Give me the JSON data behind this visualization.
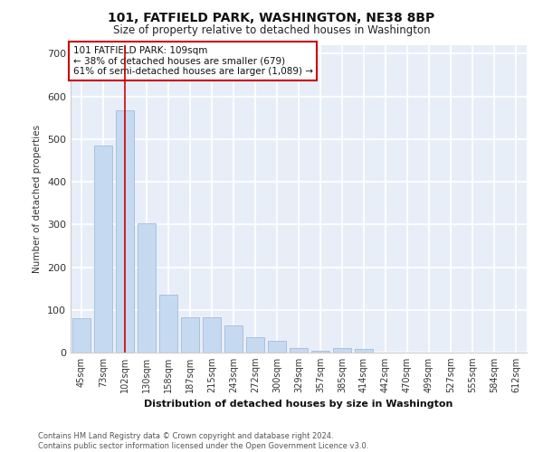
{
  "title_line1": "101, FATFIELD PARK, WASHINGTON, NE38 8BP",
  "title_line2": "Size of property relative to detached houses in Washington",
  "xlabel": "Distribution of detached houses by size in Washington",
  "ylabel": "Number of detached properties",
  "footnote": "Contains HM Land Registry data © Crown copyright and database right 2024.\nContains public sector information licensed under the Open Government Licence v3.0.",
  "bar_color": "#c5d9f1",
  "bar_edge_color": "#9ab3d5",
  "background_color": "#e8eef8",
  "grid_color": "#ffffff",
  "annotation_text": "101 FATFIELD PARK: 109sqm\n← 38% of detached houses are smaller (679)\n61% of semi-detached houses are larger (1,089) →",
  "vline_color": "#cc0000",
  "vline_index": 2,
  "categories": [
    "45sqm",
    "73sqm",
    "102sqm",
    "130sqm",
    "158sqm",
    "187sqm",
    "215sqm",
    "243sqm",
    "272sqm",
    "300sqm",
    "329sqm",
    "357sqm",
    "385sqm",
    "414sqm",
    "442sqm",
    "470sqm",
    "499sqm",
    "527sqm",
    "555sqm",
    "584sqm",
    "612sqm"
  ],
  "values": [
    80,
    484,
    567,
    302,
    135,
    83,
    83,
    63,
    35,
    28,
    10,
    4,
    10,
    8,
    0,
    0,
    0,
    0,
    0,
    0,
    0
  ],
  "ylim": [
    0,
    720
  ],
  "yticks": [
    0,
    100,
    200,
    300,
    400,
    500,
    600,
    700
  ]
}
